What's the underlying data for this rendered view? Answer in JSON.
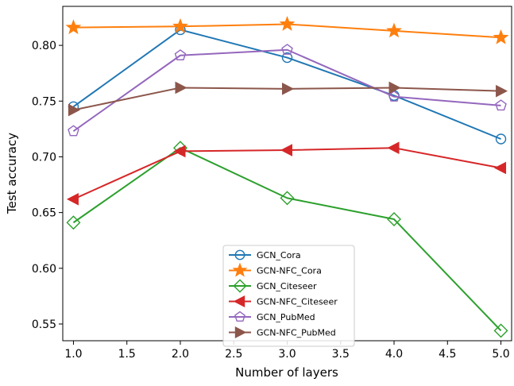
{
  "chart_data": {
    "type": "line",
    "xlabel": "Number of layers",
    "ylabel": "Test accuracy",
    "xlim": [
      0.9,
      5.1
    ],
    "ylim": [
      0.535,
      0.835
    ],
    "xticks": [
      1.0,
      1.5,
      2.0,
      2.5,
      3.0,
      3.5,
      4.0,
      4.5,
      5.0
    ],
    "xtick_labels": [
      "1.0",
      "1.5",
      "2.0",
      "2.5",
      "3.0",
      "3.5",
      "4.0",
      "4.5",
      "5.0"
    ],
    "yticks": [
      0.55,
      0.6,
      0.65,
      0.7,
      0.75,
      0.8
    ],
    "ytick_labels": [
      "0.55",
      "0.60",
      "0.65",
      "0.70",
      "0.75",
      "0.80"
    ],
    "grid": false,
    "legend_position": "bottom-center",
    "x": [
      1,
      2,
      3,
      4,
      5
    ],
    "series": [
      {
        "name": "GCN_Cora",
        "color": "#1f77b4",
        "marker": "circle",
        "values": [
          0.745,
          0.814,
          0.789,
          0.755,
          0.716
        ]
      },
      {
        "name": "GCN-NFC_Cora",
        "color": "#ff7f0e",
        "marker": "star",
        "values": [
          0.816,
          0.817,
          0.819,
          0.813,
          0.807
        ]
      },
      {
        "name": "GCN_Citeseer",
        "color": "#2ca02c",
        "marker": "diamond",
        "values": [
          0.641,
          0.708,
          0.663,
          0.644,
          0.544
        ]
      },
      {
        "name": "GCN-NFC_Citeseer",
        "color": "#d62728",
        "marker": "triangle-left",
        "values": [
          0.662,
          0.705,
          0.706,
          0.708,
          0.69
        ]
      },
      {
        "name": "GCN_PubMed",
        "color": "#9467bd",
        "marker": "pentagon",
        "values": [
          0.723,
          0.791,
          0.796,
          0.754,
          0.746
        ]
      },
      {
        "name": "GCN-NFC_PubMed",
        "color": "#8c564b",
        "marker": "triangle-right",
        "values": [
          0.742,
          0.762,
          0.761,
          0.762,
          0.759
        ]
      }
    ]
  }
}
